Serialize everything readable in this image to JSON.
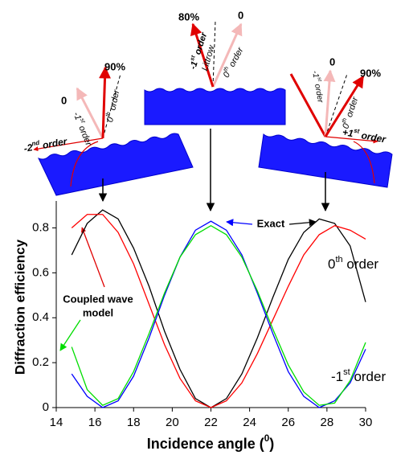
{
  "chart_data": {
    "type": "line",
    "x": [
      14.8,
      15.6,
      16.4,
      17.2,
      18,
      18.8,
      19.6,
      20.4,
      21.2,
      22,
      22.8,
      23.6,
      24.4,
      25.2,
      26,
      26.8,
      27.6,
      28.4,
      29.2,
      30
    ],
    "series": [
      {
        "color": "#000000",
        "values": [
          0.68,
          0.82,
          0.88,
          0.84,
          0.71,
          0.54,
          0.34,
          0.17,
          0.04,
          0,
          0.04,
          0.15,
          0.31,
          0.49,
          0.66,
          0.78,
          0.84,
          0.82,
          0.72,
          0.47
        ]
      },
      {
        "color": "#ff0000",
        "values": [
          0.8,
          0.86,
          0.86,
          0.78,
          0.64,
          0.46,
          0.28,
          0.13,
          0.03,
          0,
          0.03,
          0.11,
          0.24,
          0.39,
          0.54,
          0.68,
          0.77,
          0.81,
          0.79,
          0.75
        ]
      },
      {
        "color": "#0000ff",
        "values": [
          0.15,
          0.05,
          0,
          0.03,
          0.14,
          0.31,
          0.5,
          0.67,
          0.79,
          0.83,
          0.79,
          0.68,
          0.51,
          0.33,
          0.16,
          0.05,
          0,
          0.03,
          0.11,
          0.26
        ]
      },
      {
        "color": "#00dd00",
        "values": [
          0.27,
          0.08,
          0.01,
          0.04,
          0.16,
          0.33,
          0.51,
          0.67,
          0.77,
          0.81,
          0.77,
          0.67,
          0.52,
          0.35,
          0.19,
          0.07,
          0.01,
          0.02,
          0.12,
          0.29
        ]
      }
    ],
    "xlim": [
      14,
      30
    ],
    "ylim": [
      0,
      0.92
    ],
    "xticks": [
      14,
      16,
      18,
      20,
      22,
      24,
      26,
      28,
      30
    ],
    "yticks": [
      0,
      0.2,
      0.4,
      0.6,
      0.8
    ],
    "xlabel": [
      "Incidence angle (",
      "0",
      ")"
    ],
    "ylabel": "Diffraction efficiency",
    "annotations": {
      "exact": "Exact",
      "coupled": [
        "Coupled wave",
        "model"
      ],
      "order0": [
        "0",
        "th",
        " order"
      ],
      "order1": [
        "-1",
        "st",
        " order"
      ]
    }
  },
  "diagrams": [
    {
      "efficiency": "90%",
      "zero": "0",
      "order0": [
        "0",
        "th",
        " order"
      ],
      "order_m1": [
        "-1",
        "st",
        " order"
      ],
      "order_m2": [
        "-2",
        "nd",
        " order"
      ]
    },
    {
      "efficiency": "80%",
      "zero": "0",
      "order_m1": [
        "-1",
        "st",
        " order"
      ],
      "littrow": "Littrow",
      "order0": [
        "0",
        "th",
        " order"
      ]
    },
    {
      "efficiency": "90%",
      "zero": "0",
      "order_m1": [
        "-1",
        "st",
        " order"
      ],
      "order0": [
        "0",
        "th",
        " order"
      ],
      "order_p1": [
        "+1",
        "st",
        " order"
      ]
    }
  ]
}
